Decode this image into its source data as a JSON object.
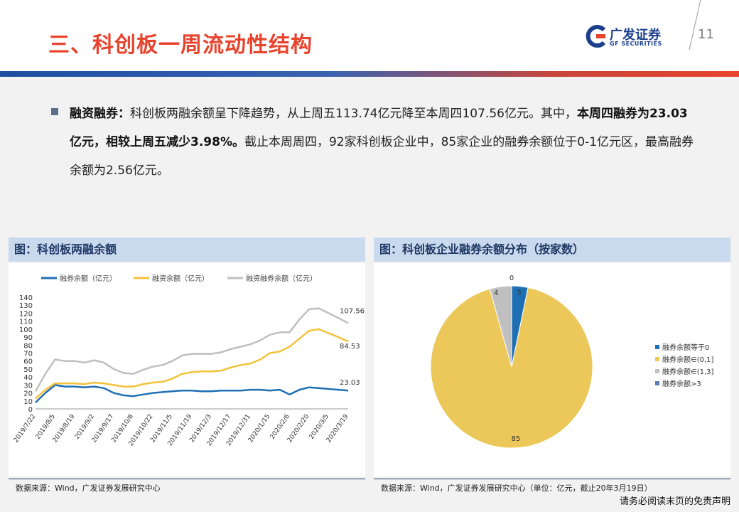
{
  "header": {
    "title": "三、科创板一周流动性结构",
    "logo_cn": "广发证券",
    "logo_en": "GF SECURITIES",
    "page_number": "11"
  },
  "body": {
    "p_label": "融资融券：",
    "p_text1": "科创板两融余额呈下降趋势，从上周五113.74亿元降至本周四107.56亿元。其中，",
    "p_bold": "本周四融券为23.03亿元，相较上周五减少3.98%。",
    "p_text2": "截止本周周四，92家科创板企业中，85家企业的融券余额位于0-1亿元区，最高融券余额为2.56亿元。"
  },
  "left_panel": {
    "title": "图：科创板两融余额",
    "source": "数据来源：Wind，广发证券发展研究中心"
  },
  "right_panel": {
    "title": "图：科创板企业融券余额分布（按家数）",
    "source": "数据来源：Wind，广发证券发展研究中心（单位：亿元，截止20年3月19日）"
  },
  "disclaimer": "请务必阅读末页的免责声明",
  "chart_data": [
    {
      "type": "line",
      "x": [
        "2019/7/22",
        "2019/7/29",
        "2019/8/5",
        "2019/8/12",
        "2019/8/19",
        "2019/8/26",
        "2019/9/2",
        "2019/9/9",
        "2019/9/17",
        "2019/9/24",
        "2019/10/8",
        "2019/10/15",
        "2019/10/22",
        "2019/10/29",
        "2019/11/5",
        "2019/11/12",
        "2019/11/19",
        "2019/11/26",
        "2019/12/3",
        "2019/12/10",
        "2019/12/17",
        "2019/12/24",
        "2019/12/31",
        "2020/1/7",
        "2020/1/15",
        "2020/1/22",
        "2020/2/6",
        "2020/2/13",
        "2020/2/20",
        "2020/2/27",
        "2020/3/5",
        "2020/3/12",
        "2020/3/19"
      ],
      "x_tick_labels": [
        "2019/7/22",
        "2019/8/5",
        "2019/8/19",
        "2019/9/2",
        "2019/9/17",
        "2019/10/8",
        "2019/10/22",
        "2019/11/5",
        "2019/11/19",
        "2019/12/3",
        "2019/12/17",
        "2019/12/31",
        "2020/1/15",
        "2020/2/6",
        "2020/2/20",
        "2020/3/5",
        "2020/3/19"
      ],
      "series": [
        {
          "name": "融券余额（亿元）",
          "color": "#1f6fb5",
          "values": [
            8,
            20,
            30,
            28,
            28,
            27,
            28,
            26,
            20,
            17,
            16,
            18,
            20,
            21,
            22,
            23,
            23,
            22,
            22,
            23,
            23,
            23,
            24,
            24,
            23,
            24,
            18,
            24,
            27,
            26,
            25,
            24,
            23.03
          ]
        },
        {
          "name": "融资余额（亿元）",
          "color": "#f2c23a",
          "values": [
            13,
            24,
            32,
            32,
            32,
            31,
            33,
            32,
            30,
            28,
            28,
            31,
            33,
            34,
            38,
            44,
            46,
            47,
            47,
            48,
            52,
            55,
            57,
            62,
            70,
            72,
            78,
            88,
            98,
            100,
            95,
            90,
            84.53
          ]
        },
        {
          "name": "融资融券余额（亿元）",
          "color": "#bfbfbf",
          "values": [
            22,
            44,
            62,
            60,
            60,
            58,
            61,
            58,
            50,
            45,
            44,
            49,
            53,
            55,
            60,
            67,
            69,
            69,
            69,
            71,
            75,
            78,
            81,
            86,
            93,
            96,
            96,
            112,
            125,
            126,
            120,
            114,
            107.56
          ]
        }
      ],
      "end_labels": [
        "107.56",
        "84.53",
        "23.03"
      ],
      "ylim": [
        0,
        140
      ],
      "yticks": [
        0,
        10,
        20,
        30,
        40,
        50,
        60,
        70,
        80,
        90,
        100,
        110,
        120,
        130,
        140
      ]
    },
    {
      "type": "pie",
      "categories": [
        "融券余额等于0",
        "融券余额∈(0,1]",
        "融券余额∈(1,3]",
        "融券余额>3"
      ],
      "values": [
        3,
        85,
        4,
        0
      ],
      "labels": [
        "3",
        "85",
        "4",
        "0"
      ],
      "colors": [
        "#1f6fb5",
        "#ecc85a",
        "#c0c0c0",
        "#5b7fb2"
      ]
    }
  ]
}
